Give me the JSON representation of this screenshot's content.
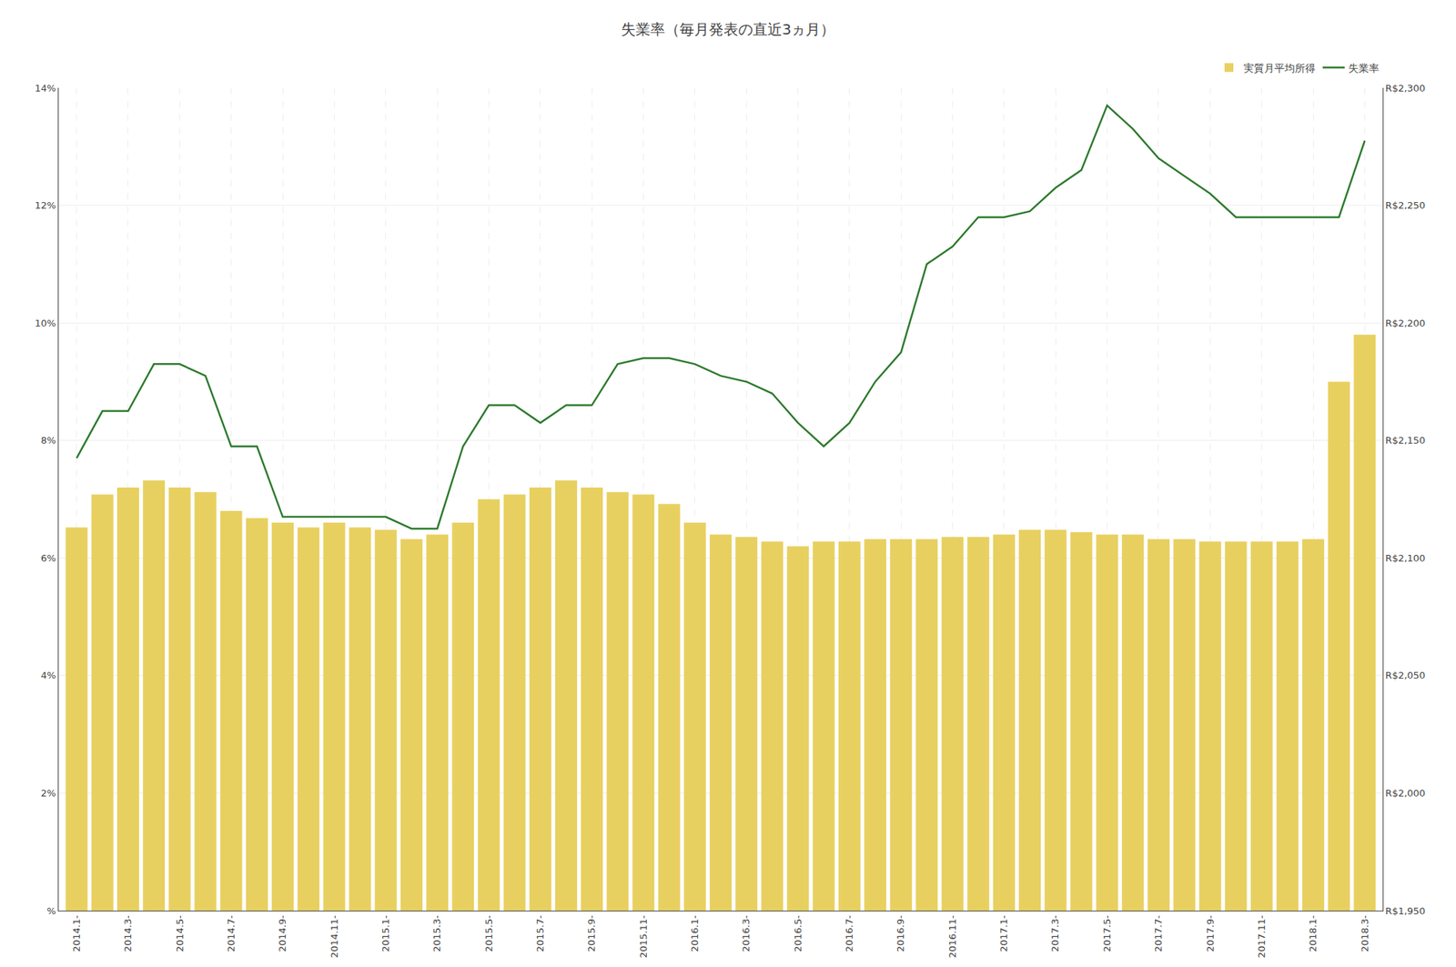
{
  "chart_data": {
    "type": "bar",
    "title": "失業率（毎月発表の直近3ヵ月）",
    "categories": [
      "2014.1-",
      null,
      "2014.3-",
      null,
      "2014.5-",
      null,
      "2014.7-",
      null,
      "2014.9-",
      null,
      "2014.11-",
      null,
      "2015.1-",
      null,
      "2015.3-",
      null,
      "2015.5-",
      null,
      "2015.7-",
      null,
      "2015.9-",
      null,
      "2015.11-",
      null,
      "2016.1-",
      null,
      "2016.3-",
      null,
      "2016.5-",
      null,
      "2016.7-",
      null,
      "2016.9-",
      null,
      "2016.11-",
      null,
      "2017.1-",
      null,
      "2017.3-",
      null,
      "2017.5-",
      null,
      "2017.7-",
      null,
      "2017.9-",
      null,
      "2017.11-",
      null,
      "2018.1-",
      null,
      "2018.3-"
    ],
    "series": [
      {
        "name": "実質月平均所得",
        "type": "bar",
        "axis": "y2",
        "color": "#E8D060",
        "values": [
          2113,
          2127,
          2130,
          2133,
          2130,
          2128,
          2120,
          2117,
          2115,
          2113,
          2115,
          2113,
          2112,
          2108,
          2110,
          2115,
          2125,
          2127,
          2130,
          2133,
          2130,
          2128,
          2127,
          2123,
          2115,
          2110,
          2109,
          2107,
          2105,
          2107,
          2107,
          2108,
          2108,
          2108,
          2109,
          2109,
          2110,
          2112,
          2112,
          2111,
          2110,
          2110,
          2108,
          2108,
          2107,
          2107,
          2107,
          2107,
          2108,
          2175,
          2195
        ]
      },
      {
        "name": "失業率",
        "type": "line",
        "color": "#2D7A2D",
        "values": [
          7.7,
          8.5,
          8.5,
          9.3,
          9.3,
          9.1,
          7.9,
          7.9,
          6.7,
          6.7,
          6.7,
          6.7,
          6.7,
          6.5,
          6.5,
          7.9,
          8.6,
          8.6,
          8.3,
          8.6,
          8.6,
          9.3,
          9.4,
          9.4,
          9.3,
          9.1,
          9.0,
          8.8,
          8.3,
          7.9,
          8.3,
          9.0,
          9.5,
          11.0,
          11.3,
          11.8,
          11.8,
          11.9,
          12.3,
          12.6,
          13.7,
          13.3,
          12.8,
          12.5,
          12.2,
          11.8,
          11.8,
          11.8,
          11.8,
          11.8,
          13.1
        ]
      }
    ],
    "ylim": [
      0,
      14
    ],
    "yticks": [
      {
        "value": 0,
        "label": "%"
      },
      {
        "value": 2,
        "label": "2%"
      },
      {
        "value": 4,
        "label": "4%"
      },
      {
        "value": 6,
        "label": "6%"
      },
      {
        "value": 8,
        "label": "8%"
      },
      {
        "value": 10,
        "label": "10%"
      },
      {
        "value": 12,
        "label": "12%"
      },
      {
        "value": 14,
        "label": "14%"
      }
    ],
    "y2lim": [
      1950,
      2300
    ],
    "y2ticks": [
      {
        "value": 1950,
        "label": "R$1,950"
      },
      {
        "value": 2000,
        "label": "R$2,000"
      },
      {
        "value": 2050,
        "label": "R$2,050"
      },
      {
        "value": 2100,
        "label": "R$2,100"
      },
      {
        "value": 2150,
        "label": "R$2,150"
      },
      {
        "value": 2200,
        "label": "R$2,200"
      },
      {
        "value": 2250,
        "label": "R$2,250"
      },
      {
        "value": 2300,
        "label": "R$2,300"
      }
    ],
    "grid": true,
    "legend": "upper right"
  }
}
